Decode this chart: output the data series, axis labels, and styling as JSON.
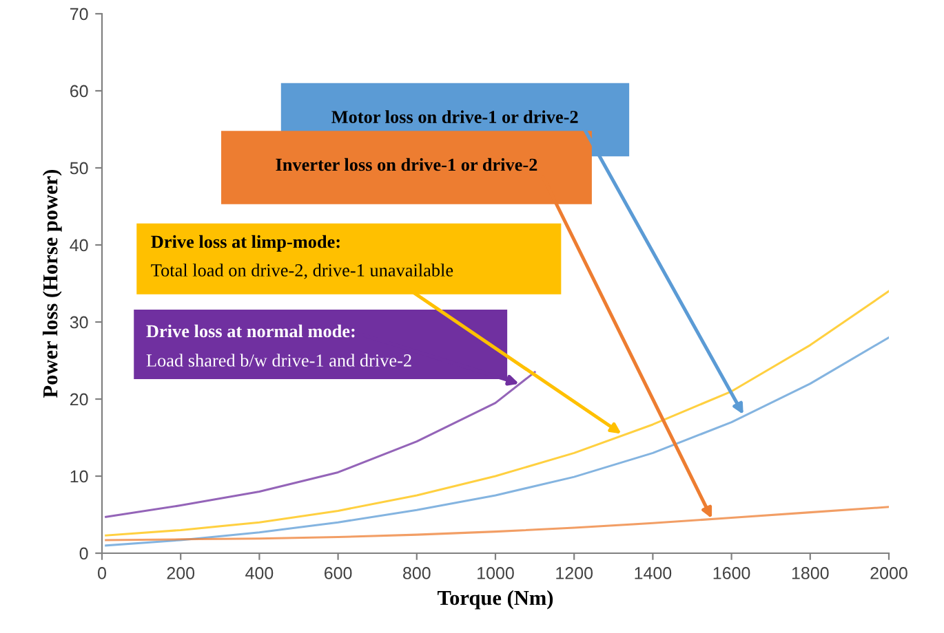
{
  "chart_data": {
    "type": "line",
    "xlabel": "Torque (Nm)",
    "ylabel": "Power loss (Horse power)",
    "x": [
      10,
      200,
      400,
      600,
      800,
      1000,
      1200,
      1400,
      1600,
      1800,
      2000
    ],
    "series": [
      {
        "color": "#5b9bd5",
        "values": [
          1,
          1.7,
          2.7,
          4,
          5.6,
          7.5,
          9.9,
          13,
          17,
          22,
          28
        ]
      },
      {
        "color": "#ed7d31",
        "values": [
          1.7,
          1.8,
          1.9,
          2.1,
          2.4,
          2.8,
          3.3,
          3.9,
          4.6,
          5.3,
          6
        ]
      },
      {
        "color": "#ffc000",
        "values": [
          2.3,
          3,
          4,
          5.5,
          7.5,
          10,
          13,
          16.7,
          21,
          27,
          34
        ]
      },
      {
        "color": "#7030a0",
        "x": [
          10,
          200,
          400,
          600,
          800,
          1000,
          1100
        ],
        "values": [
          4.7,
          6.2,
          8,
          10.5,
          14.5,
          19.5,
          23.5
        ]
      }
    ],
    "annotations": [
      {
        "text": "Motor loss on drive-1 or drive-2",
        "x": 1630,
        "y": 18
      },
      {
        "text": "Inverter loss on drive-1 or drive-2",
        "x": 1550,
        "y": 4.5
      },
      {
        "text": "Drive loss at limp-mode:",
        "x": 1320,
        "y": 15.5
      },
      "Total load on drive-2, drive-1 unavailable",
      {
        "text": "Drive loss at normal mode:",
        "x": 1060,
        "y": 22
      },
      "Load shared b/w drive-1 and drive-2"
    ],
    "xlim": [
      0,
      2000
    ],
    "ylim": [
      0,
      70
    ],
    "xticks": [
      0,
      200,
      400,
      600,
      800,
      1000,
      1200,
      1400,
      1600,
      1800,
      2000
    ],
    "yticks": [
      0,
      10,
      20,
      30,
      40,
      50,
      60,
      70
    ],
    "grid": false,
    "marker": "none",
    "line_style": "solid"
  }
}
